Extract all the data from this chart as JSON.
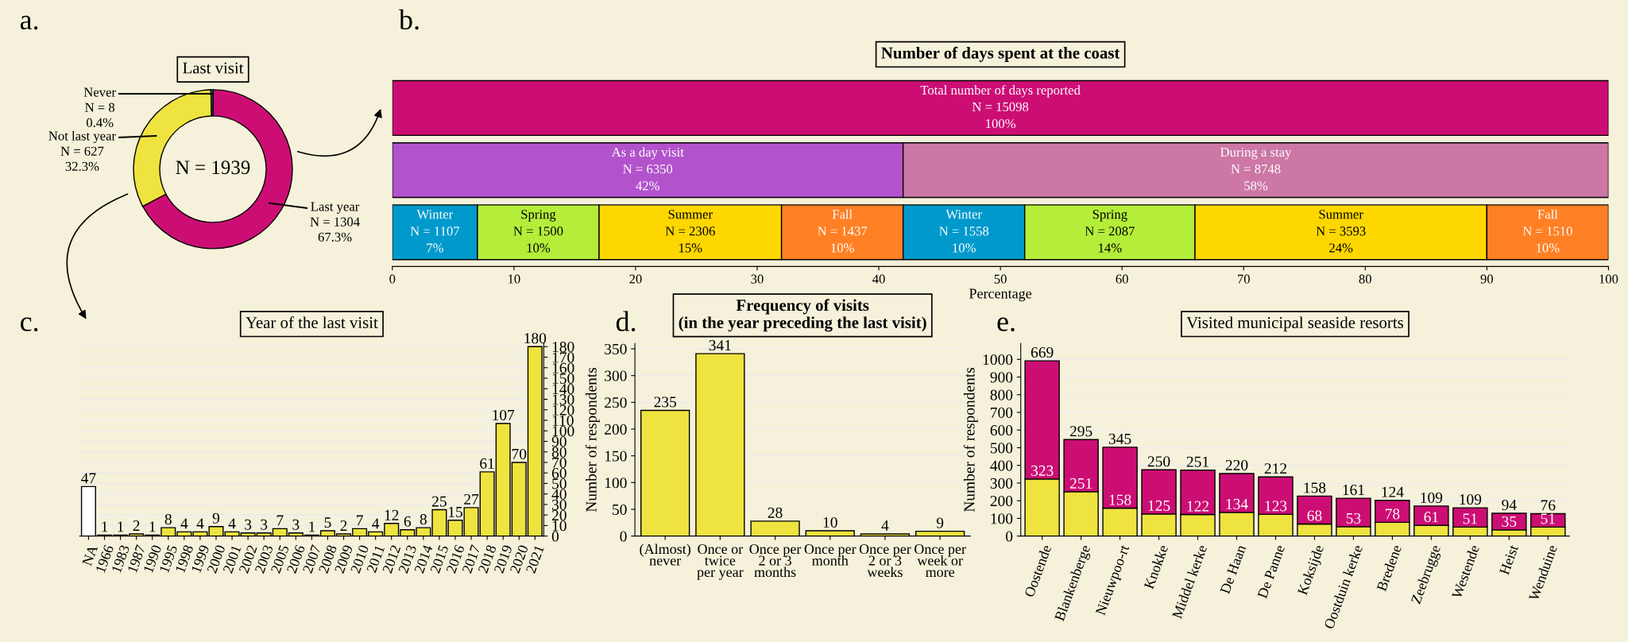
{
  "chart_data": [
    {
      "type": "donut",
      "title": "Last visit",
      "categories": [
        "Last year",
        "Not last year",
        "Never"
      ],
      "values": [
        1304,
        627,
        8
      ],
      "colors": [
        "#cc0e74",
        "#efe33f",
        "#0f8a6c"
      ],
      "value_labels": [
        "N = 1304\n67.3%",
        "N = 627\n32.3%",
        "N = 8\n0.4%"
      ],
      "annotations": [
        "a.",
        "N = 1939"
      ]
    },
    {
      "type": "bar",
      "orientation": "horizontal",
      "stacked": true,
      "title": "Number of days spent at the coast",
      "xlabel": "Percentage",
      "categories": [
        null,
        null,
        null
      ],
      "xlim": [
        0,
        100
      ],
      "xticks": [
        0,
        10,
        20,
        30,
        40,
        50,
        60,
        70,
        80,
        90,
        100
      ],
      "tick_labels": "x",
      "series": [
        {
          "name": "Total number of days reported",
          "color": "#cc0e74",
          "values": [
            100,
            null,
            null
          ],
          "value_labels": [
            "100%",
            null,
            null
          ]
        },
        {
          "name": "As a day visit",
          "color": "#b253cc",
          "values": [
            null,
            42,
            null
          ],
          "value_labels": [
            null,
            "42%",
            null
          ]
        },
        {
          "name": "During a stay",
          "color": "#cc77a5",
          "values": [
            null,
            58,
            null
          ],
          "value_labels": [
            null,
            "58%",
            null
          ]
        },
        {
          "name": "Winter",
          "color": "#0099cc",
          "values": [
            null,
            null,
            7
          ],
          "value_labels": [
            null,
            null,
            "7%"
          ]
        },
        {
          "name": "Spring",
          "color": "#b4ee3a",
          "values": [
            null,
            null,
            10
          ],
          "value_labels": [
            null,
            null,
            "10%"
          ]
        },
        {
          "name": "Summer",
          "color": "#ffd700",
          "values": [
            null,
            null,
            15
          ],
          "value_labels": [
            null,
            null,
            "15%"
          ]
        },
        {
          "name": "Fall",
          "color": "#ff8024",
          "values": [
            null,
            null,
            10
          ],
          "value_labels": [
            null,
            null,
            "10%"
          ]
        },
        {
          "name": "Winter",
          "color": "#0099cc",
          "values": [
            null,
            null,
            10
          ],
          "value_labels": [
            null,
            null,
            "10%"
          ]
        },
        {
          "name": "Spring",
          "color": "#b4ee3a",
          "values": [
            null,
            null,
            14
          ],
          "value_labels": [
            null,
            null,
            "14%"
          ]
        },
        {
          "name": "Summer",
          "color": "#ffd700",
          "values": [
            null,
            null,
            24
          ],
          "value_labels": [
            null,
            null,
            "24%"
          ]
        },
        {
          "name": "Fall",
          "color": "#ff8024",
          "values": [
            null,
            null,
            10
          ],
          "value_labels": [
            null,
            null,
            "10%"
          ]
        }
      ],
      "annotations": [
        "b.",
        "N = 15098",
        "N = 6350",
        "N = 8748",
        "N = 1107",
        "N = 1500",
        "N = 2306",
        "N = 1437",
        "N = 1558",
        "N = 2087",
        "N = 3593",
        "N = 1510"
      ]
    },
    {
      "type": "bar",
      "title": "Year of the last visit",
      "categories": [
        "NA",
        "1966",
        "1983",
        "1987",
        "1990",
        "1995",
        "1998",
        "1999",
        "2000",
        "2001",
        "2002",
        "2003",
        "2005",
        "2006",
        "2007",
        "2008",
        "2009",
        "2010",
        "2011",
        "2012",
        "2013",
        "2014",
        "2015",
        "2016",
        "2017",
        "2018",
        "2019",
        "2020",
        "2021"
      ],
      "series": [
        {
          "axis": "y2",
          "values": [
            47,
            1,
            1,
            2,
            1,
            8,
            4,
            4,
            9,
            4,
            3,
            3,
            7,
            3,
            1,
            5,
            2,
            7,
            4,
            12,
            6,
            8,
            25,
            15,
            27,
            61,
            107,
            70,
            180
          ],
          "colors": [
            "#ffffff",
            "#efe33f",
            "#efe33f",
            "#efe33f",
            "#efe33f",
            "#efe33f",
            "#efe33f",
            "#efe33f",
            "#efe33f",
            "#efe33f",
            "#efe33f",
            "#efe33f",
            "#efe33f",
            "#efe33f",
            "#efe33f",
            "#efe33f",
            "#efe33f",
            "#efe33f",
            "#efe33f",
            "#efe33f",
            "#efe33f",
            "#efe33f",
            "#efe33f",
            "#efe33f",
            "#efe33f",
            "#efe33f",
            "#efe33f",
            "#efe33f",
            "#efe33f"
          ]
        }
      ],
      "y2lim": [
        0,
        183
      ],
      "y2ticks": [
        0,
        10,
        20,
        30,
        40,
        50,
        60,
        70,
        80,
        90,
        100,
        110,
        120,
        130,
        140,
        150,
        160,
        170,
        180
      ],
      "grid": "y",
      "data_labels": true,
      "annotations": [
        "c."
      ]
    },
    {
      "type": "bar",
      "title": "Frequency of visits\n(in the year preceding the last visit)",
      "ylabel": "Number of respondents",
      "categories": [
        "(Almost)\nnever",
        "Once or\ntwice\nper year",
        "Once per\n2 or 3\nmonths",
        "Once per\nmonth",
        "Once per\n2 or 3\nweeks",
        "Once per\nweek or\nmore"
      ],
      "values": [
        235,
        341,
        28,
        10,
        4,
        9
      ],
      "color": "#efe33f",
      "ylim": [
        0,
        360
      ],
      "yticks": [
        0,
        50,
        100,
        150,
        200,
        250,
        300,
        350
      ],
      "grid": "y",
      "data_labels": true,
      "annotations": [
        "d."
      ]
    },
    {
      "type": "bar",
      "stacked": true,
      "title": "Visited municipal seaside resorts",
      "ylabel": "Number of respondents",
      "categories": [
        "Oostende",
        "Blankenberge",
        "Nieuwpoo-rt",
        "Knokke",
        "Middel kerke",
        "De Haan",
        "De Panne",
        "Koksijde",
        "Oostduin kerke",
        "Bredene",
        "Zeebrugge",
        "Westende",
        "Heist",
        "Wenduine"
      ],
      "series": [
        {
          "color": "#efe33f",
          "values": [
            323,
            251,
            158,
            125,
            122,
            134,
            123,
            68,
            53,
            78,
            61,
            51,
            35,
            51
          ]
        },
        {
          "color": "#cc0e74",
          "values": [
            669,
            295,
            345,
            250,
            251,
            220,
            212,
            158,
            161,
            124,
            109,
            109,
            94,
            76
          ]
        }
      ],
      "ylim": [
        0,
        1090
      ],
      "yticks": [
        0,
        100,
        200,
        300,
        400,
        500,
        600,
        700,
        800,
        900,
        1000
      ],
      "grid": "y",
      "data_labels": true,
      "annotations": [
        "e."
      ]
    }
  ]
}
